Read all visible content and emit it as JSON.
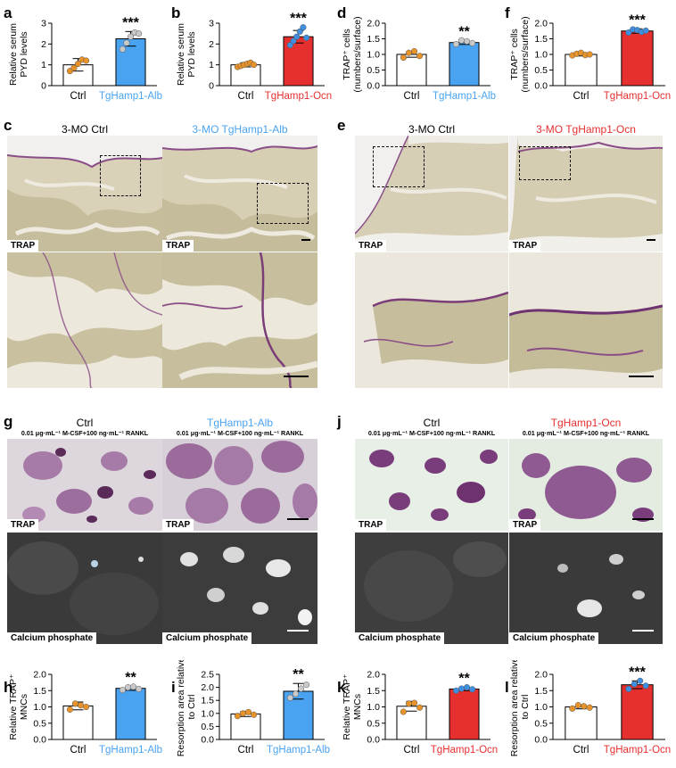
{
  "colors": {
    "blue": "#4aa3f0",
    "red": "#e63030",
    "ctrl_fill": "#ffffff",
    "orange_dot": "#e8932a",
    "grey_dot": "#c9c9c9",
    "blue_dot": "#3f8fe0"
  },
  "panels": {
    "a": "a",
    "b": "b",
    "c": "c",
    "d": "d",
    "e": "e",
    "f": "f",
    "g": "g",
    "h": "h",
    "i": "i",
    "j": "j",
    "k": "k",
    "l": "l"
  },
  "histology": {
    "c_left_title": "3-MO Ctrl",
    "c_right_title": "3-MO TgHamp1-Alb",
    "e_left_title": "3-MO Ctrl",
    "e_right_title": "3-MO TgHamp1-Ocn",
    "trap_tag": "TRAP"
  },
  "cultures": {
    "g_left_title": "Ctrl",
    "g_right_title": "TgHamp1-Alb",
    "j_left_title": "Ctrl",
    "j_right_title": "TgHamp1-Ocn",
    "condition": "0.01 μg·mL⁻¹ M-CSF+100 ng·mL⁻¹ RANKL",
    "trap_tag": "TRAP",
    "calcium_tag": "Calcium phosphate"
  },
  "chart_data": [
    {
      "id": "a",
      "type": "bar",
      "categories": [
        "Ctrl",
        "TgHamp1-Alb"
      ],
      "values": [
        1.0,
        2.25
      ],
      "errors": [
        0.3,
        0.35
      ],
      "points": [
        [
          0.7,
          0.85,
          1.05,
          1.25,
          1.2
        ],
        [
          1.75,
          2.05,
          2.35,
          2.55,
          2.5
        ]
      ],
      "ylabel": "Relative serum PYD levels",
      "ylim": [
        0,
        3
      ],
      "yticks": [
        0,
        1,
        2,
        3
      ],
      "significance": "***",
      "fills": [
        "#ffffff",
        "#4aa3f0"
      ],
      "dots": [
        "#e8932a",
        "#c9c9c9"
      ]
    },
    {
      "id": "b",
      "type": "bar",
      "categories": [
        "Ctrl",
        "TgHamp1-Ocn"
      ],
      "values": [
        1.0,
        2.35
      ],
      "errors": [
        0.1,
        0.3
      ],
      "points": [
        [
          0.9,
          0.95,
          1.0,
          1.05,
          1.1,
          1.0
        ],
        [
          1.95,
          2.15,
          2.35,
          2.6,
          2.8,
          2.3
        ]
      ],
      "ylabel": "Relative serum PYD levels",
      "ylim": [
        0,
        3
      ],
      "yticks": [
        0,
        1,
        2,
        3
      ],
      "significance": "***",
      "fills": [
        "#ffffff",
        "#e63030"
      ],
      "dots": [
        "#e8932a",
        "#3f8fe0"
      ]
    },
    {
      "id": "d",
      "type": "bar",
      "categories": [
        "Ctrl",
        "TgHamp1-Alb"
      ],
      "values": [
        1.0,
        1.38
      ],
      "errors": [
        0.09,
        0.06
      ],
      "points": [
        [
          0.9,
          1.05,
          1.1,
          0.95
        ],
        [
          1.33,
          1.45,
          1.42,
          1.36
        ]
      ],
      "ylabel": "TRAP⁺ cells (numbers/surface)",
      "ylim": [
        0,
        2.0
      ],
      "yticks": [
        0,
        0.5,
        1.0,
        1.5,
        2.0
      ],
      "significance": "**",
      "fills": [
        "#ffffff",
        "#4aa3f0"
      ],
      "dots": [
        "#e8932a",
        "#c9c9c9"
      ]
    },
    {
      "id": "f",
      "type": "bar",
      "categories": [
        "Ctrl",
        "TgHamp1-Ocn"
      ],
      "values": [
        1.0,
        1.75
      ],
      "errors": [
        0.05,
        0.07
      ],
      "points": [
        [
          0.97,
          1.02,
          1.05,
          0.98,
          1.0
        ],
        [
          1.7,
          1.8,
          1.78,
          1.72,
          1.76
        ]
      ],
      "ylabel": "TRAP⁺ cells (numbers/surface)",
      "ylim": [
        0,
        2.0
      ],
      "yticks": [
        0,
        0.5,
        1.0,
        1.5,
        2.0
      ],
      "significance": "***",
      "fills": [
        "#ffffff",
        "#e63030"
      ],
      "dots": [
        "#e8932a",
        "#3f8fe0"
      ]
    },
    {
      "id": "h",
      "type": "bar",
      "categories": [
        "Ctrl",
        "TgHamp1-Alb"
      ],
      "values": [
        1.03,
        1.57
      ],
      "errors": [
        0.12,
        0.06
      ],
      "points": [
        [
          0.92,
          1.1,
          1.05,
          1.0
        ],
        [
          1.52,
          1.6,
          1.62,
          1.55
        ]
      ],
      "ylabel": "Relative TRAP⁺ MNCs",
      "ylim": [
        0,
        2.0
      ],
      "yticks": [
        0,
        0.5,
        1.0,
        1.5,
        2.0
      ],
      "significance": "**",
      "fills": [
        "#ffffff",
        "#4aa3f0"
      ],
      "dots": [
        "#e8932a",
        "#c9c9c9"
      ]
    },
    {
      "id": "i",
      "type": "bar",
      "categories": [
        "Ctrl",
        "TgHamp1-Alb"
      ],
      "values": [
        0.98,
        1.85
      ],
      "errors": [
        0.1,
        0.3
      ],
      "points": [
        [
          0.9,
          1.0,
          1.05,
          0.95
        ],
        [
          1.6,
          1.75,
          1.95,
          2.1
        ]
      ],
      "ylabel": "Resorption area relative to Ctrl",
      "ylim": [
        0,
        2.5
      ],
      "yticks": [
        0,
        0.5,
        1.0,
        1.5,
        2.0,
        2.5
      ],
      "significance": "**",
      "fills": [
        "#ffffff",
        "#4aa3f0"
      ],
      "dots": [
        "#e8932a",
        "#c9c9c9"
      ]
    },
    {
      "id": "k",
      "type": "bar",
      "categories": [
        "Ctrl",
        "TgHamp1-Ocn"
      ],
      "values": [
        1.02,
        1.55
      ],
      "errors": [
        0.15,
        0.05
      ],
      "points": [
        [
          0.85,
          1.1,
          1.12,
          0.98
        ],
        [
          1.5,
          1.56,
          1.6,
          1.54
        ]
      ],
      "ylabel": "Relative TRAP⁺ MNCs",
      "ylim": [
        0,
        2.0
      ],
      "yticks": [
        0,
        0.5,
        1.0,
        1.5,
        2.0
      ],
      "significance": "**",
      "fills": [
        "#ffffff",
        "#e63030"
      ],
      "dots": [
        "#e8932a",
        "#3f8fe0"
      ]
    },
    {
      "id": "l",
      "type": "bar",
      "categories": [
        "Ctrl",
        "TgHamp1-Ocn"
      ],
      "values": [
        1.0,
        1.68
      ],
      "errors": [
        0.06,
        0.12
      ],
      "points": [
        [
          0.95,
          1.05,
          1.02,
          0.98
        ],
        [
          1.55,
          1.7,
          1.8,
          1.65
        ]
      ],
      "ylabel": "Resorption area relative to Ctrl",
      "ylim": [
        0,
        2.0
      ],
      "yticks": [
        0,
        0.5,
        1.0,
        1.5,
        2.0
      ],
      "significance": "***",
      "fills": [
        "#ffffff",
        "#e63030"
      ],
      "dots": [
        "#e8932a",
        "#3f8fe0"
      ]
    }
  ]
}
